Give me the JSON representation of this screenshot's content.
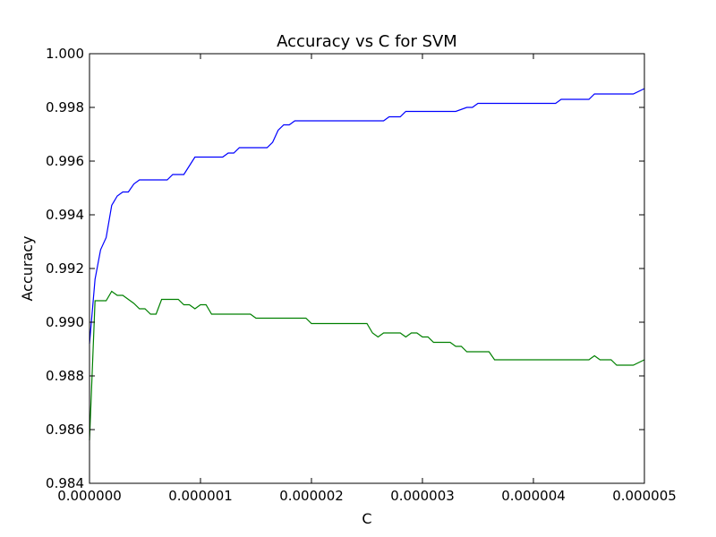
{
  "chart_data": {
    "type": "line",
    "title": "Accuracy vs C for SVM",
    "xlabel": "C",
    "ylabel": "Accuracy",
    "xlim": [
      0,
      5e-06
    ],
    "ylim": [
      0.984,
      1.0
    ],
    "grid": false,
    "legend": "none",
    "x_ticks": [
      "0.000000",
      "0.000001",
      "0.000002",
      "0.000003",
      "0.000004",
      "0.000005"
    ],
    "y_ticks": [
      "0.984",
      "0.986",
      "0.988",
      "0.990",
      "0.992",
      "0.994",
      "0.996",
      "0.998",
      "1.000"
    ],
    "series": [
      {
        "color": "#0000ff",
        "points": [
          [
            0.0,
            0.9892
          ],
          [
            5e-08,
            0.9916
          ],
          [
            1e-07,
            0.9927
          ],
          [
            1.5e-07,
            0.99315
          ],
          [
            2e-07,
            0.99435
          ],
          [
            2.5e-07,
            0.9947
          ],
          [
            3e-07,
            0.99485
          ],
          [
            3.5e-07,
            0.99485
          ],
          [
            4e-07,
            0.99515
          ],
          [
            4.5e-07,
            0.9953
          ],
          [
            5e-07,
            0.9953
          ],
          [
            7e-07,
            0.9953
          ],
          [
            7.5e-07,
            0.9955
          ],
          [
            8.5e-07,
            0.9955
          ],
          [
            9.5e-07,
            0.99615
          ],
          [
            1.2e-06,
            0.99615
          ],
          [
            1.25e-06,
            0.9963
          ],
          [
            1.3e-06,
            0.9963
          ],
          [
            1.35e-06,
            0.9965
          ],
          [
            1.6e-06,
            0.9965
          ],
          [
            1.65e-06,
            0.9967
          ],
          [
            1.7e-06,
            0.99715
          ],
          [
            1.75e-06,
            0.99735
          ],
          [
            1.8e-06,
            0.99735
          ],
          [
            1.85e-06,
            0.9975
          ],
          [
            2.6e-06,
            0.9975
          ],
          [
            2.65e-06,
            0.9975
          ],
          [
            2.7e-06,
            0.99765
          ],
          [
            2.8e-06,
            0.99765
          ],
          [
            2.85e-06,
            0.99785
          ],
          [
            3.3e-06,
            0.99785
          ],
          [
            3.4e-06,
            0.998
          ],
          [
            3.45e-06,
            0.998
          ],
          [
            3.5e-06,
            0.99815
          ],
          [
            4.2e-06,
            0.99815
          ],
          [
            4.25e-06,
            0.9983
          ],
          [
            4.5e-06,
            0.9983
          ],
          [
            4.55e-06,
            0.9985
          ],
          [
            4.9e-06,
            0.9985
          ],
          [
            5e-06,
            0.9987
          ]
        ]
      },
      {
        "color": "#008000",
        "points": [
          [
            0.0,
            0.9856
          ],
          [
            5e-08,
            0.9908
          ],
          [
            1.5e-07,
            0.9908
          ],
          [
            2e-07,
            0.99115
          ],
          [
            2.5e-07,
            0.991
          ],
          [
            3e-07,
            0.991
          ],
          [
            4e-07,
            0.9907
          ],
          [
            4.5e-07,
            0.9905
          ],
          [
            5e-07,
            0.9905
          ],
          [
            5.5e-07,
            0.9903
          ],
          [
            6e-07,
            0.9903
          ],
          [
            6.5e-07,
            0.99085
          ],
          [
            8e-07,
            0.99085
          ],
          [
            8.5e-07,
            0.99065
          ],
          [
            9e-07,
            0.99065
          ],
          [
            9.5e-07,
            0.9905
          ],
          [
            1e-06,
            0.99065
          ],
          [
            1.05e-06,
            0.99065
          ],
          [
            1.1e-06,
            0.9903
          ],
          [
            1.45e-06,
            0.9903
          ],
          [
            1.5e-06,
            0.99015
          ],
          [
            1.95e-06,
            0.99015
          ],
          [
            2e-06,
            0.98995
          ],
          [
            2.5e-06,
            0.98995
          ],
          [
            2.55e-06,
            0.9896
          ],
          [
            2.6e-06,
            0.98945
          ],
          [
            2.65e-06,
            0.9896
          ],
          [
            2.8e-06,
            0.9896
          ],
          [
            2.85e-06,
            0.98945
          ],
          [
            2.9e-06,
            0.9896
          ],
          [
            2.95e-06,
            0.9896
          ],
          [
            3e-06,
            0.98945
          ],
          [
            3.05e-06,
            0.98945
          ],
          [
            3.1e-06,
            0.98925
          ],
          [
            3.25e-06,
            0.98925
          ],
          [
            3.3e-06,
            0.9891
          ],
          [
            3.35e-06,
            0.9891
          ],
          [
            3.4e-06,
            0.9889
          ],
          [
            3.6e-06,
            0.9889
          ],
          [
            3.65e-06,
            0.9886
          ],
          [
            4.5e-06,
            0.9886
          ],
          [
            4.55e-06,
            0.98875
          ],
          [
            4.6e-06,
            0.9886
          ],
          [
            4.7e-06,
            0.9886
          ],
          [
            4.75e-06,
            0.9884
          ],
          [
            4.9e-06,
            0.9884
          ],
          [
            5e-06,
            0.9886
          ]
        ]
      }
    ]
  }
}
